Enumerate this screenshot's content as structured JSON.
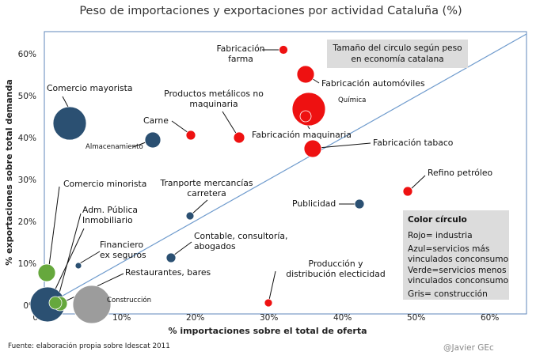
{
  "chart_data": {
    "type": "scatter",
    "title": "Peso de importaciones y exportaciones por actividad Cataluña (%)",
    "xlabel": "% importaciones sobre el total de oferta",
    "ylabel": "% exportaciones sobre total demanda",
    "xlim": [
      0,
      65
    ],
    "ylim": [
      0,
      65
    ],
    "x_ticks": [
      "0%",
      "10%",
      "20%",
      "30%",
      "40%",
      "50%",
      "60%"
    ],
    "y_ticks": [
      "0%",
      "10%",
      "20%",
      "30%",
      "40%",
      "50%",
      "60%"
    ],
    "diagonal_line": true,
    "size_note": [
      "Tamaño del circulo según peso",
      "en economía catalana"
    ],
    "legend": {
      "title": "Color círculo",
      "lines": [
        "Rojo= industria",
        "Azul=servicios más",
        "vinculados conconsumo",
        "Verde=servicios menos",
        "vinculados conconsumo",
        "Gris= construcción"
      ]
    },
    "colors": {
      "industria": "#ee1111",
      "servicios_mas": "#2b5072",
      "servicios_menos": "#66a83d",
      "construccion": "#9c9c9c",
      "diagonal": "#6f9bcd"
    },
    "points": [
      {
        "name": "Fabricación farma",
        "label_lines": [
          "Fabricación",
          "farma"
        ],
        "x": 32.2,
        "y": 61.5,
        "size": 5,
        "group": "industria"
      },
      {
        "name": "Fabricación automóviles",
        "label_lines": [
          "Fabricación automóviles"
        ],
        "x": 35.3,
        "y": 55.2,
        "size": 11,
        "group": "industria"
      },
      {
        "name": "Química",
        "label_lines": [
          "Química"
        ],
        "x": 35.3,
        "y": 47.0,
        "size": 21,
        "group": "industria"
      },
      {
        "name": "Fabricación maquinaria",
        "label_lines": [
          "Fabricación maquinaria"
        ],
        "x": 35.3,
        "y": 45.0,
        "size": 7,
        "group": "industria"
      },
      {
        "name": "Fabricación tabaco",
        "label_lines": [
          "Fabricación tabaco"
        ],
        "x": 35.8,
        "y": 37.0,
        "size": 11,
        "group": "industria"
      },
      {
        "name": "Productos metálicos no maquinaria",
        "label_lines": [
          "Productos metálicos no",
          "maquinaria"
        ],
        "x": 26.3,
        "y": 40.0,
        "size": 7,
        "group": "industria"
      },
      {
        "name": "Carne",
        "label_lines": [
          "Carne"
        ],
        "x": 19.8,
        "y": 40.5,
        "size": 6,
        "group": "industria"
      },
      {
        "name": "Refino petróleo",
        "label_lines": [
          "Refino petróleo"
        ],
        "x": 49.2,
        "y": 27.0,
        "size": 6,
        "group": "industria"
      },
      {
        "name": "Producción y distribución electicidad",
        "label_lines": [
          "Producción y",
          "distribución electicidad"
        ],
        "x": 30.0,
        "y": 0.4,
        "size": 5,
        "group": "industria"
      },
      {
        "name": "Comercio mayorista",
        "label_lines": [
          "Comercio mayorista"
        ],
        "x": 3.2,
        "y": 43.5,
        "size": 21,
        "group": "servicios_mas"
      },
      {
        "name": "Almacenamiento",
        "label_lines": [
          "Almacenamiento"
        ],
        "x": 14.4,
        "y": 39.3,
        "size": 10,
        "group": "servicios_mas"
      },
      {
        "name": "Publicidad",
        "label_lines": [
          "Publicidad"
        ],
        "x": 42.4,
        "y": 24.0,
        "size": 6,
        "group": "servicios_mas"
      },
      {
        "name": "Tranporte mercancías carretera",
        "label_lines": [
          "Tranporte mercancías",
          "carretera"
        ],
        "x": 19.4,
        "y": 21.4,
        "size": 5,
        "group": "servicios_mas"
      },
      {
        "name": "Contable, consultoría, abogados",
        "label_lines": [
          "Contable, consultoría,",
          "abogados"
        ],
        "x": 16.7,
        "y": 11.3,
        "size": 6,
        "group": "servicios_mas"
      },
      {
        "name": "Financiero ex seguros",
        "label_lines": [
          "Financiero",
          "ex seguros"
        ],
        "x": 4.2,
        "y": 9.5,
        "size": 4,
        "group": "servicios_mas"
      },
      {
        "name": "Inmobiliario",
        "label_lines": [
          "Inmobiliario"
        ],
        "x": 0.3,
        "y": 0.4,
        "size": 22,
        "group": "servicios_mas"
      },
      {
        "name": "Comercio minorista",
        "label_lines": [
          "Comercio minorista"
        ],
        "x": 0.2,
        "y": 8.0,
        "size": 11,
        "group": "servicios_menos"
      },
      {
        "name": "Adm. Pública",
        "label_lines": [
          "Adm. Pública"
        ],
        "x": 2.0,
        "y": 0.2,
        "size": 9,
        "group": "servicios_menos"
      },
      {
        "name": "Restaurantes, bares",
        "label_lines": [
          "Restaurantes, bares"
        ],
        "x": 1.2,
        "y": 0.5,
        "size": 8,
        "group": "servicios_menos"
      },
      {
        "name": "Construcción",
        "label_lines": [
          "Construcción"
        ],
        "x": 7.5,
        "y": 0.2,
        "size": 24,
        "group": "construccion"
      }
    ]
  },
  "footer": {
    "source": "Fuente: elaboración propia sobre Idescat 2011",
    "credit": "@Javier GEc"
  }
}
